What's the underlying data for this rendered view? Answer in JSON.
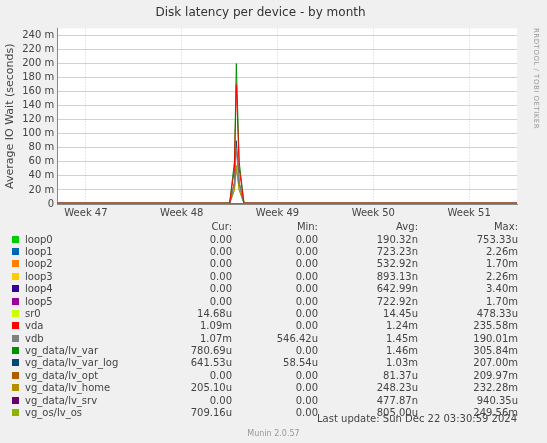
{
  "chart_data": {
    "type": "line",
    "title": "Disk latency per device - by month",
    "y_label": "Average IO Wait (seconds)",
    "grid": true,
    "xlim": [
      46.7,
      51.5
    ],
    "xticks": [
      {
        "value": 47,
        "label": "Week 47"
      },
      {
        "value": 48,
        "label": "Week 48"
      },
      {
        "value": 49,
        "label": "Week 49"
      },
      {
        "value": 50,
        "label": "Week 50"
      },
      {
        "value": 51,
        "label": "Week 51"
      }
    ],
    "ylim": [
      0,
      0.25
    ],
    "yticks": [
      {
        "value": 0,
        "label": "0"
      },
      {
        "value": 0.02,
        "label": "20 m"
      },
      {
        "value": 0.04,
        "label": "40 m"
      },
      {
        "value": 0.06,
        "label": "60 m"
      },
      {
        "value": 0.08,
        "label": "80 m"
      },
      {
        "value": 0.1,
        "label": "100 m"
      },
      {
        "value": 0.12,
        "label": "120 m"
      },
      {
        "value": 0.14,
        "label": "140 m"
      },
      {
        "value": 0.16,
        "label": "160 m"
      },
      {
        "value": 0.18,
        "label": "180 m"
      },
      {
        "value": 0.2,
        "label": "200 m"
      },
      {
        "value": 0.22,
        "label": "220 m"
      },
      {
        "value": 0.24,
        "label": "240 m"
      }
    ],
    "x": [
      46.7,
      47.0,
      47.5,
      48.0,
      48.5,
      48.55,
      48.57,
      48.6,
      48.65,
      49.0,
      49.5,
      50.0,
      50.5,
      51.0,
      51.5
    ],
    "legend_columns": [
      "Cur:",
      "Min:",
      "Avg:",
      "Max:"
    ],
    "series": [
      {
        "name": "loop0",
        "color": "#00CC00",
        "cur": "0.00",
        "min": "0.00",
        "avg": "190.32n",
        "max": "753.33u",
        "values": [
          0,
          0,
          0,
          0,
          0,
          0,
          0,
          0,
          0,
          0,
          0,
          0,
          0,
          0,
          0
        ]
      },
      {
        "name": "loop1",
        "color": "#0066B3",
        "cur": "0.00",
        "min": "0.00",
        "avg": "723.23n",
        "max": "2.26m",
        "values": [
          0,
          0,
          0,
          0,
          0,
          0,
          0,
          0,
          0,
          0,
          0,
          0,
          0,
          0,
          0
        ]
      },
      {
        "name": "loop2",
        "color": "#FF8000",
        "cur": "0.00",
        "min": "0.00",
        "avg": "532.92n",
        "max": "1.70m",
        "values": [
          0,
          0,
          0,
          0,
          0,
          0,
          0,
          0,
          0,
          0,
          0,
          0,
          0,
          0,
          0
        ]
      },
      {
        "name": "loop3",
        "color": "#FFCC00",
        "cur": "0.00",
        "min": "0.00",
        "avg": "893.13n",
        "max": "2.26m",
        "values": [
          0,
          0,
          0,
          0,
          0,
          0,
          0,
          0,
          0,
          0,
          0,
          0,
          0,
          0,
          0
        ]
      },
      {
        "name": "loop4",
        "color": "#330099",
        "cur": "0.00",
        "min": "0.00",
        "avg": "642.99n",
        "max": "3.40m",
        "values": [
          0,
          0,
          0,
          0,
          0,
          0,
          0,
          0,
          0,
          0,
          0,
          0,
          0,
          0,
          0
        ]
      },
      {
        "name": "loop5",
        "color": "#990099",
        "cur": "0.00",
        "min": "0.00",
        "avg": "722.92n",
        "max": "1.70m",
        "values": [
          0,
          0,
          0,
          0,
          0,
          0,
          0,
          0,
          0,
          0,
          0,
          0,
          0,
          0,
          0
        ]
      },
      {
        "name": "sr0",
        "color": "#CCFF00",
        "cur": "14.68u",
        "min": "0.00",
        "avg": "14.45u",
        "max": "478.33u",
        "values": [
          1e-05,
          1e-05,
          1e-05,
          1e-05,
          1e-05,
          1e-05,
          1e-05,
          1e-05,
          1e-05,
          1e-05,
          1e-05,
          1e-05,
          1e-05,
          1e-05,
          1e-05
        ]
      },
      {
        "name": "vda",
        "color": "#FF0000",
        "cur": "1.09m",
        "min": "0.00",
        "avg": "1.24m",
        "max": "235.58m",
        "values": [
          0.0012,
          0.0012,
          0.0012,
          0.0012,
          0.0012,
          0.05,
          0.17,
          0.05,
          0.0012,
          0.0012,
          0.0012,
          0.0012,
          0.0012,
          0.0012,
          0.0012
        ]
      },
      {
        "name": "vdb",
        "color": "#808080",
        "cur": "1.07m",
        "min": "546.42u",
        "avg": "1.45m",
        "max": "190.01m",
        "values": [
          0.0014,
          0.0014,
          0.0014,
          0.0014,
          0.0014,
          0.03,
          0.08,
          0.03,
          0.0014,
          0.0014,
          0.0014,
          0.0014,
          0.0014,
          0.0014,
          0.0014
        ]
      },
      {
        "name": "vg_data/lv_var",
        "color": "#008F00",
        "cur": "780.69u",
        "min": "0.00",
        "avg": "1.46m",
        "max": "305.84m",
        "values": [
          0.0015,
          0.0015,
          0.0015,
          0.0015,
          0.0015,
          0.06,
          0.2,
          0.06,
          0.0015,
          0.0015,
          0.0015,
          0.0015,
          0.0015,
          0.0015,
          0.0015
        ]
      },
      {
        "name": "vg_data/lv_var_log",
        "color": "#00487D",
        "cur": "641.53u",
        "min": "58.54u",
        "avg": "1.03m",
        "max": "207.00m",
        "values": [
          0.001,
          0.001,
          0.001,
          0.001,
          0.001,
          0.03,
          0.09,
          0.03,
          0.001,
          0.001,
          0.001,
          0.001,
          0.001,
          0.001,
          0.001
        ]
      },
      {
        "name": "vg_data/lv_opt",
        "color": "#B35A00",
        "cur": "0.00",
        "min": "0.00",
        "avg": "81.37u",
        "max": "209.97m",
        "values": [
          0.0001,
          0.0001,
          0.0001,
          0.0001,
          0.0001,
          0.0001,
          0.0001,
          0.0001,
          0.0001,
          0.0001,
          0.0001,
          0.0001,
          0.0001,
          0.0001,
          0.0001
        ]
      },
      {
        "name": "vg_data/lv_home",
        "color": "#B38F00",
        "cur": "205.10u",
        "min": "0.00",
        "avg": "248.23u",
        "max": "232.28m",
        "values": [
          0.0003,
          0.0003,
          0.0003,
          0.0003,
          0.0003,
          0.02,
          0.05,
          0.02,
          0.0003,
          0.0003,
          0.0003,
          0.0003,
          0.0003,
          0.0003,
          0.0003
        ]
      },
      {
        "name": "vg_data/lv_srv",
        "color": "#6B006B",
        "cur": "0.00",
        "min": "0.00",
        "avg": "477.87n",
        "max": "940.35u",
        "values": [
          0.0005,
          0.0005,
          0.0005,
          0.0005,
          0.0005,
          0.0005,
          0.0005,
          0.0005,
          0.0005,
          0.0005,
          0.0005,
          0.0005,
          0.0005,
          0.0005,
          0.0005
        ]
      },
      {
        "name": "vg_os/lv_os",
        "color": "#8FB300",
        "cur": "709.16u",
        "min": "0.00",
        "avg": "805.00u",
        "max": "249.56m",
        "values": [
          0.0008,
          0.0008,
          0.0008,
          0.0008,
          0.0008,
          0.02,
          0.055,
          0.02,
          0.0008,
          0.0008,
          0.0008,
          0.0008,
          0.0008,
          0.0008,
          0.0008
        ]
      }
    ],
    "annotations": {
      "watermark": "RRDTOOL / TOBI OETIKER",
      "last_update": "Last update: Sun Dec 22 03:30:59 2024",
      "generator": "Munin 2.0.57"
    }
  }
}
